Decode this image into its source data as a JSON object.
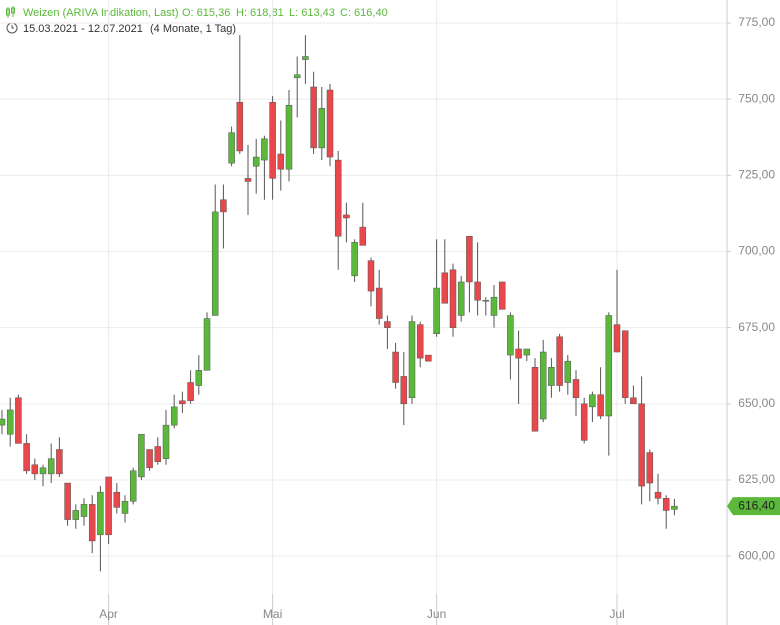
{
  "chart_data": {
    "type": "candlestick",
    "title": "Weizen (ARIVA Indikation, Last)",
    "ohlc_labels": [
      "O: 615,36",
      "H: 618,81",
      "L: 613,43",
      "C: 616,40"
    ],
    "period": "15.03.2021 - 12.07.2021",
    "period_length": "(4 Monate, 1 Tag)",
    "up_color": "#5cb83a",
    "down_color": "#e8484b",
    "categories": [
      null,
      null,
      null,
      null,
      null,
      null,
      null,
      null,
      null,
      null,
      null,
      null,
      null,
      "Apr",
      null,
      null,
      null,
      null,
      null,
      null,
      null,
      null,
      null,
      null,
      null,
      null,
      null,
      null,
      null,
      null,
      null,
      null,
      null,
      "Mai",
      null,
      null,
      null,
      null,
      null,
      null,
      null,
      null,
      null,
      null,
      null,
      null,
      null,
      null,
      null,
      null,
      null,
      null,
      null,
      "Jun",
      null,
      null,
      null,
      null,
      null,
      null,
      null,
      null,
      null,
      null,
      null,
      null,
      null,
      null,
      null,
      null,
      null,
      null,
      null,
      null,
      null,
      "Jul",
      null,
      null,
      null,
      null,
      null,
      null,
      null
    ],
    "open": [
      643,
      640,
      652,
      637,
      630,
      627,
      627,
      635,
      624,
      612,
      613,
      617,
      607,
      626,
      621,
      614,
      618,
      626,
      635,
      636,
      632,
      643,
      651,
      657,
      656,
      661,
      679,
      717,
      729,
      749,
      724,
      728,
      730,
      749,
      732,
      727,
      757,
      763,
      754,
      734,
      753,
      730,
      712,
      692,
      708,
      697,
      688,
      677,
      667,
      659,
      652,
      676,
      666,
      673,
      693,
      694,
      679,
      705,
      690,
      684,
      679,
      690,
      666,
      668,
      666,
      662,
      645,
      656,
      672,
      657,
      658,
      650,
      649,
      653,
      646,
      676,
      674,
      652,
      650,
      634,
      621,
      619,
      615.36
    ],
    "high": [
      648,
      652,
      653,
      640,
      632,
      630,
      637,
      639,
      624,
      617,
      619,
      620,
      623,
      626,
      624,
      620,
      629,
      640,
      635,
      639,
      648,
      653,
      654,
      661,
      666,
      680,
      722,
      722,
      741,
      771,
      735,
      737,
      738,
      751,
      743,
      753,
      764,
      771,
      759,
      754,
      755,
      733,
      716,
      704,
      716,
      698,
      694,
      679,
      670,
      667,
      679,
      677,
      666,
      704,
      704,
      696,
      692,
      705,
      703,
      685,
      689,
      690,
      680,
      674,
      668,
      665,
      671,
      665,
      673,
      666,
      661,
      652,
      654,
      662,
      680,
      694,
      674,
      656,
      659,
      635,
      627,
      620,
      618.81
    ],
    "low": [
      640,
      636,
      637,
      627,
      625,
      623,
      624,
      626,
      610,
      609,
      610,
      601,
      595,
      604,
      614,
      611,
      617,
      625,
      628,
      630,
      630,
      642,
      647,
      650,
      653,
      661,
      679,
      701,
      728,
      732,
      712,
      719,
      717,
      717,
      720,
      723,
      744,
      755,
      732,
      730,
      728,
      694,
      703,
      690,
      702,
      682,
      676,
      668,
      655,
      643,
      650,
      662,
      664,
      672,
      683,
      672,
      677,
      680,
      679,
      679,
      675,
      681,
      658,
      650,
      664,
      641,
      644,
      652,
      654,
      653,
      646,
      637,
      644,
      645,
      633,
      667,
      650,
      650,
      617,
      618,
      617,
      609,
      613.43
    ],
    "close": [
      645,
      648,
      637,
      628,
      627,
      629,
      632,
      627,
      612,
      615,
      617,
      605,
      621,
      607,
      616,
      618,
      628,
      640,
      629,
      631,
      643,
      649,
      650,
      651,
      661,
      678,
      713,
      713,
      739,
      733,
      723,
      731,
      737,
      724,
      727,
      748,
      758,
      764,
      734,
      747,
      731,
      705,
      711,
      703,
      702,
      687,
      678,
      675,
      657,
      650,
      677,
      665,
      664,
      688,
      683,
      675,
      690,
      690,
      684,
      684,
      685,
      681,
      679,
      665,
      668,
      641,
      667,
      662,
      656,
      664,
      652,
      638,
      653,
      646,
      679,
      667,
      652,
      650,
      623,
      624,
      619,
      615,
      616.4
    ],
    "last_price": {
      "value": 616.4,
      "label": "616,40"
    },
    "ylim": [
      577.4,
      782.55
    ],
    "yticks": [
      {
        "value": 600,
        "label": "600,00"
      },
      {
        "value": 625,
        "label": "625,00"
      },
      {
        "value": 650,
        "label": "650,00"
      },
      {
        "value": 675,
        "label": "675,00"
      },
      {
        "value": 700,
        "label": "700,00"
      },
      {
        "value": 725,
        "label": "725,00"
      },
      {
        "value": 750,
        "label": "750,00"
      },
      {
        "value": 775,
        "label": "775,00"
      }
    ],
    "grid": true
  }
}
